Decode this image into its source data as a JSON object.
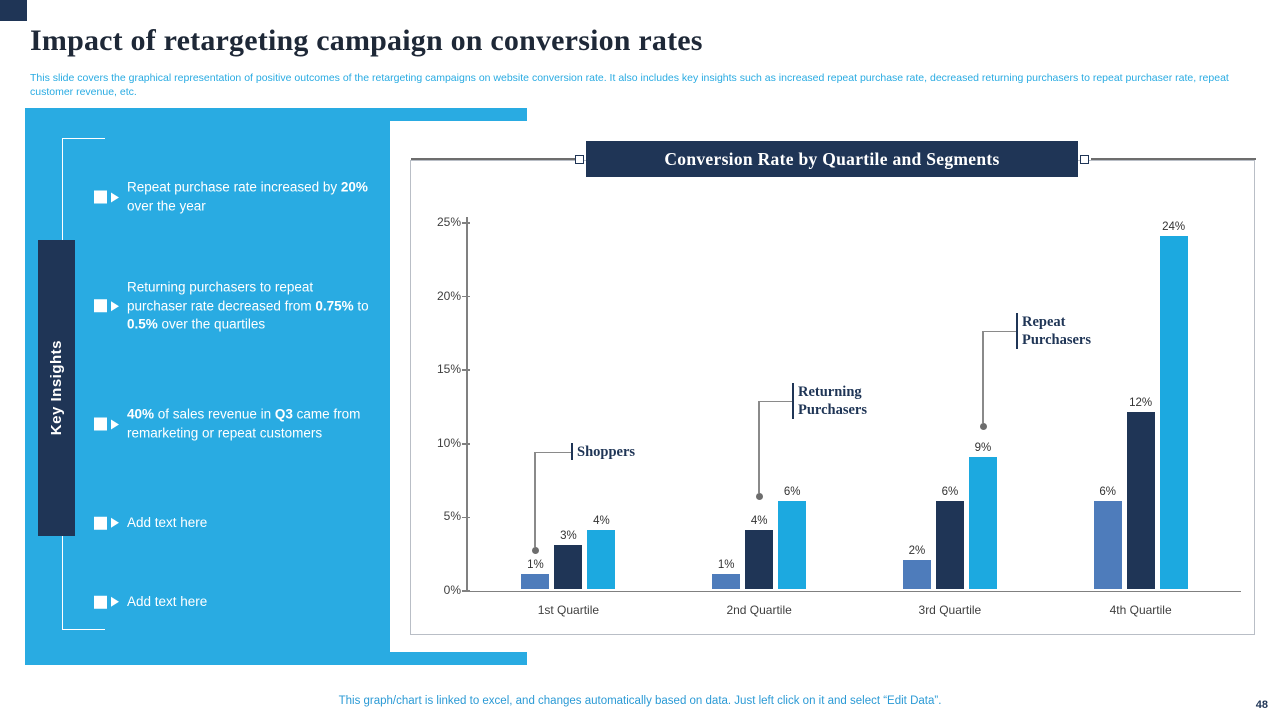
{
  "page": {
    "title": "Impact of retargeting campaign on conversion rates",
    "subtitle": "This slide covers the graphical representation of positive outcomes of the retargeting campaigns on website conversion rate. It also includes key insights such as increased repeat purchase rate, decreased returning purchasers to repeat purchaser rate, repeat customer revenue, etc.",
    "footer": "This graph/chart is linked to excel, and changes automatically based on data. Just left click on it and select “Edit Data”.",
    "page_number": "48"
  },
  "colors": {
    "accent_cyan": "#29ABE2",
    "navy": "#1F3556",
    "bar_shoppers": "#4E7CBB",
    "bar_returning": "#1F3556",
    "bar_repeat": "#1CA9E0"
  },
  "key_insights": {
    "label": "Key Insights",
    "items": [
      {
        "segments": [
          {
            "t": "Repeat purchase rate increased by ",
            "b": false
          },
          {
            "t": "20%",
            "b": true
          },
          {
            "t": " over the year",
            "b": false
          }
        ]
      },
      {
        "segments": [
          {
            "t": "Returning purchasers to repeat purchaser rate decreased from ",
            "b": false
          },
          {
            "t": "0.75%",
            "b": true
          },
          {
            "t": " to ",
            "b": false
          },
          {
            "t": "0.5%",
            "b": true
          },
          {
            "t": " over the quartiles",
            "b": false
          }
        ]
      },
      {
        "segments": [
          {
            "t": "40%",
            "b": true
          },
          {
            "t": " of sales revenue in ",
            "b": false
          },
          {
            "t": "Q3",
            "b": true
          },
          {
            "t": " came from remarketing or repeat customers",
            "b": false
          }
        ]
      },
      {
        "segments": [
          {
            "t": "Add text here",
            "b": false
          }
        ]
      },
      {
        "segments": [
          {
            "t": "Add text here",
            "b": false
          }
        ]
      }
    ]
  },
  "chart_data": {
    "type": "bar",
    "title": "Conversion Rate by Quartile and Segments",
    "categories": [
      "1st Quartile",
      "2nd Quartile",
      "3rd Quartile",
      "4th Quartile"
    ],
    "series": [
      {
        "name": "Shoppers",
        "color": "#4E7CBB",
        "values": [
          1,
          1,
          2,
          6
        ]
      },
      {
        "name": "Returning Purchasers",
        "color": "#1F3556",
        "values": [
          3,
          4,
          6,
          12
        ]
      },
      {
        "name": "Repeat Purchasers",
        "color": "#1CA9E0",
        "values": [
          4,
          6,
          9,
          24
        ]
      }
    ],
    "value_suffix": "%",
    "y_ticks": [
      "25%",
      "20%",
      "15%",
      "10%",
      "5%",
      "0%"
    ],
    "ylim": [
      0,
      25
    ],
    "grid": false,
    "legend_position": "none",
    "annotations": [
      {
        "lines": [
          "Shoppers"
        ],
        "target": "1st Quartile / Shoppers"
      },
      {
        "lines": [
          "Returning",
          "Purchasers"
        ],
        "target": "2nd Quartile / Returning Purchasers"
      },
      {
        "lines": [
          "Repeat",
          "Purchasers"
        ],
        "target": "3rd Quartile / Repeat Purchasers"
      }
    ]
  }
}
